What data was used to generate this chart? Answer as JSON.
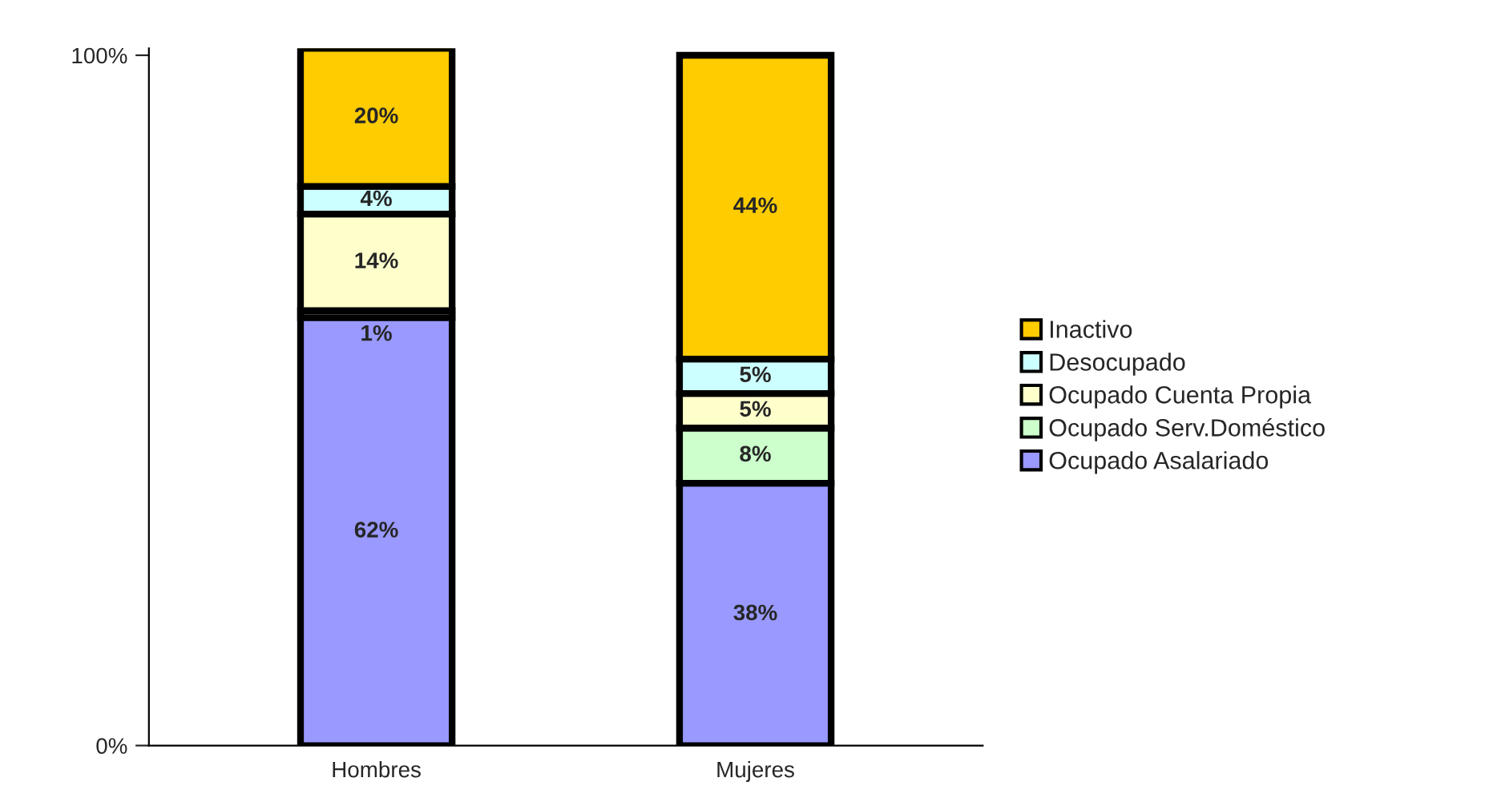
{
  "chart_data": {
    "type": "bar",
    "stacked": true,
    "categories": [
      "Hombres",
      "Mujeres"
    ],
    "series": [
      {
        "name": "Ocupado Asalariado",
        "color": "#9999ff",
        "values": [
          62,
          38
        ],
        "value_labels": [
          "62%",
          "38%"
        ]
      },
      {
        "name": "Ocupado Serv.Doméstico",
        "color": "#ccffcc",
        "values": [
          1,
          8
        ],
        "value_labels": [
          "1%",
          "8%"
        ]
      },
      {
        "name": "Ocupado Cuenta Propia",
        "color": "#ffffcc",
        "values": [
          14,
          5
        ],
        "value_labels": [
          "14%",
          "5%"
        ]
      },
      {
        "name": "Desocupado",
        "color": "#ccffff",
        "values": [
          4,
          5
        ],
        "value_labels": [
          "4%",
          "5%"
        ]
      },
      {
        "name": "Inactivo",
        "color": "#ffcc00",
        "values": [
          20,
          44
        ],
        "value_labels": [
          "20%",
          "44%"
        ]
      }
    ],
    "ylim": [
      0,
      101
    ],
    "yticks": [
      {
        "value": 0,
        "label": "0%"
      },
      {
        "value": 100,
        "label": "100%"
      }
    ],
    "grid": false,
    "legend": "right"
  }
}
